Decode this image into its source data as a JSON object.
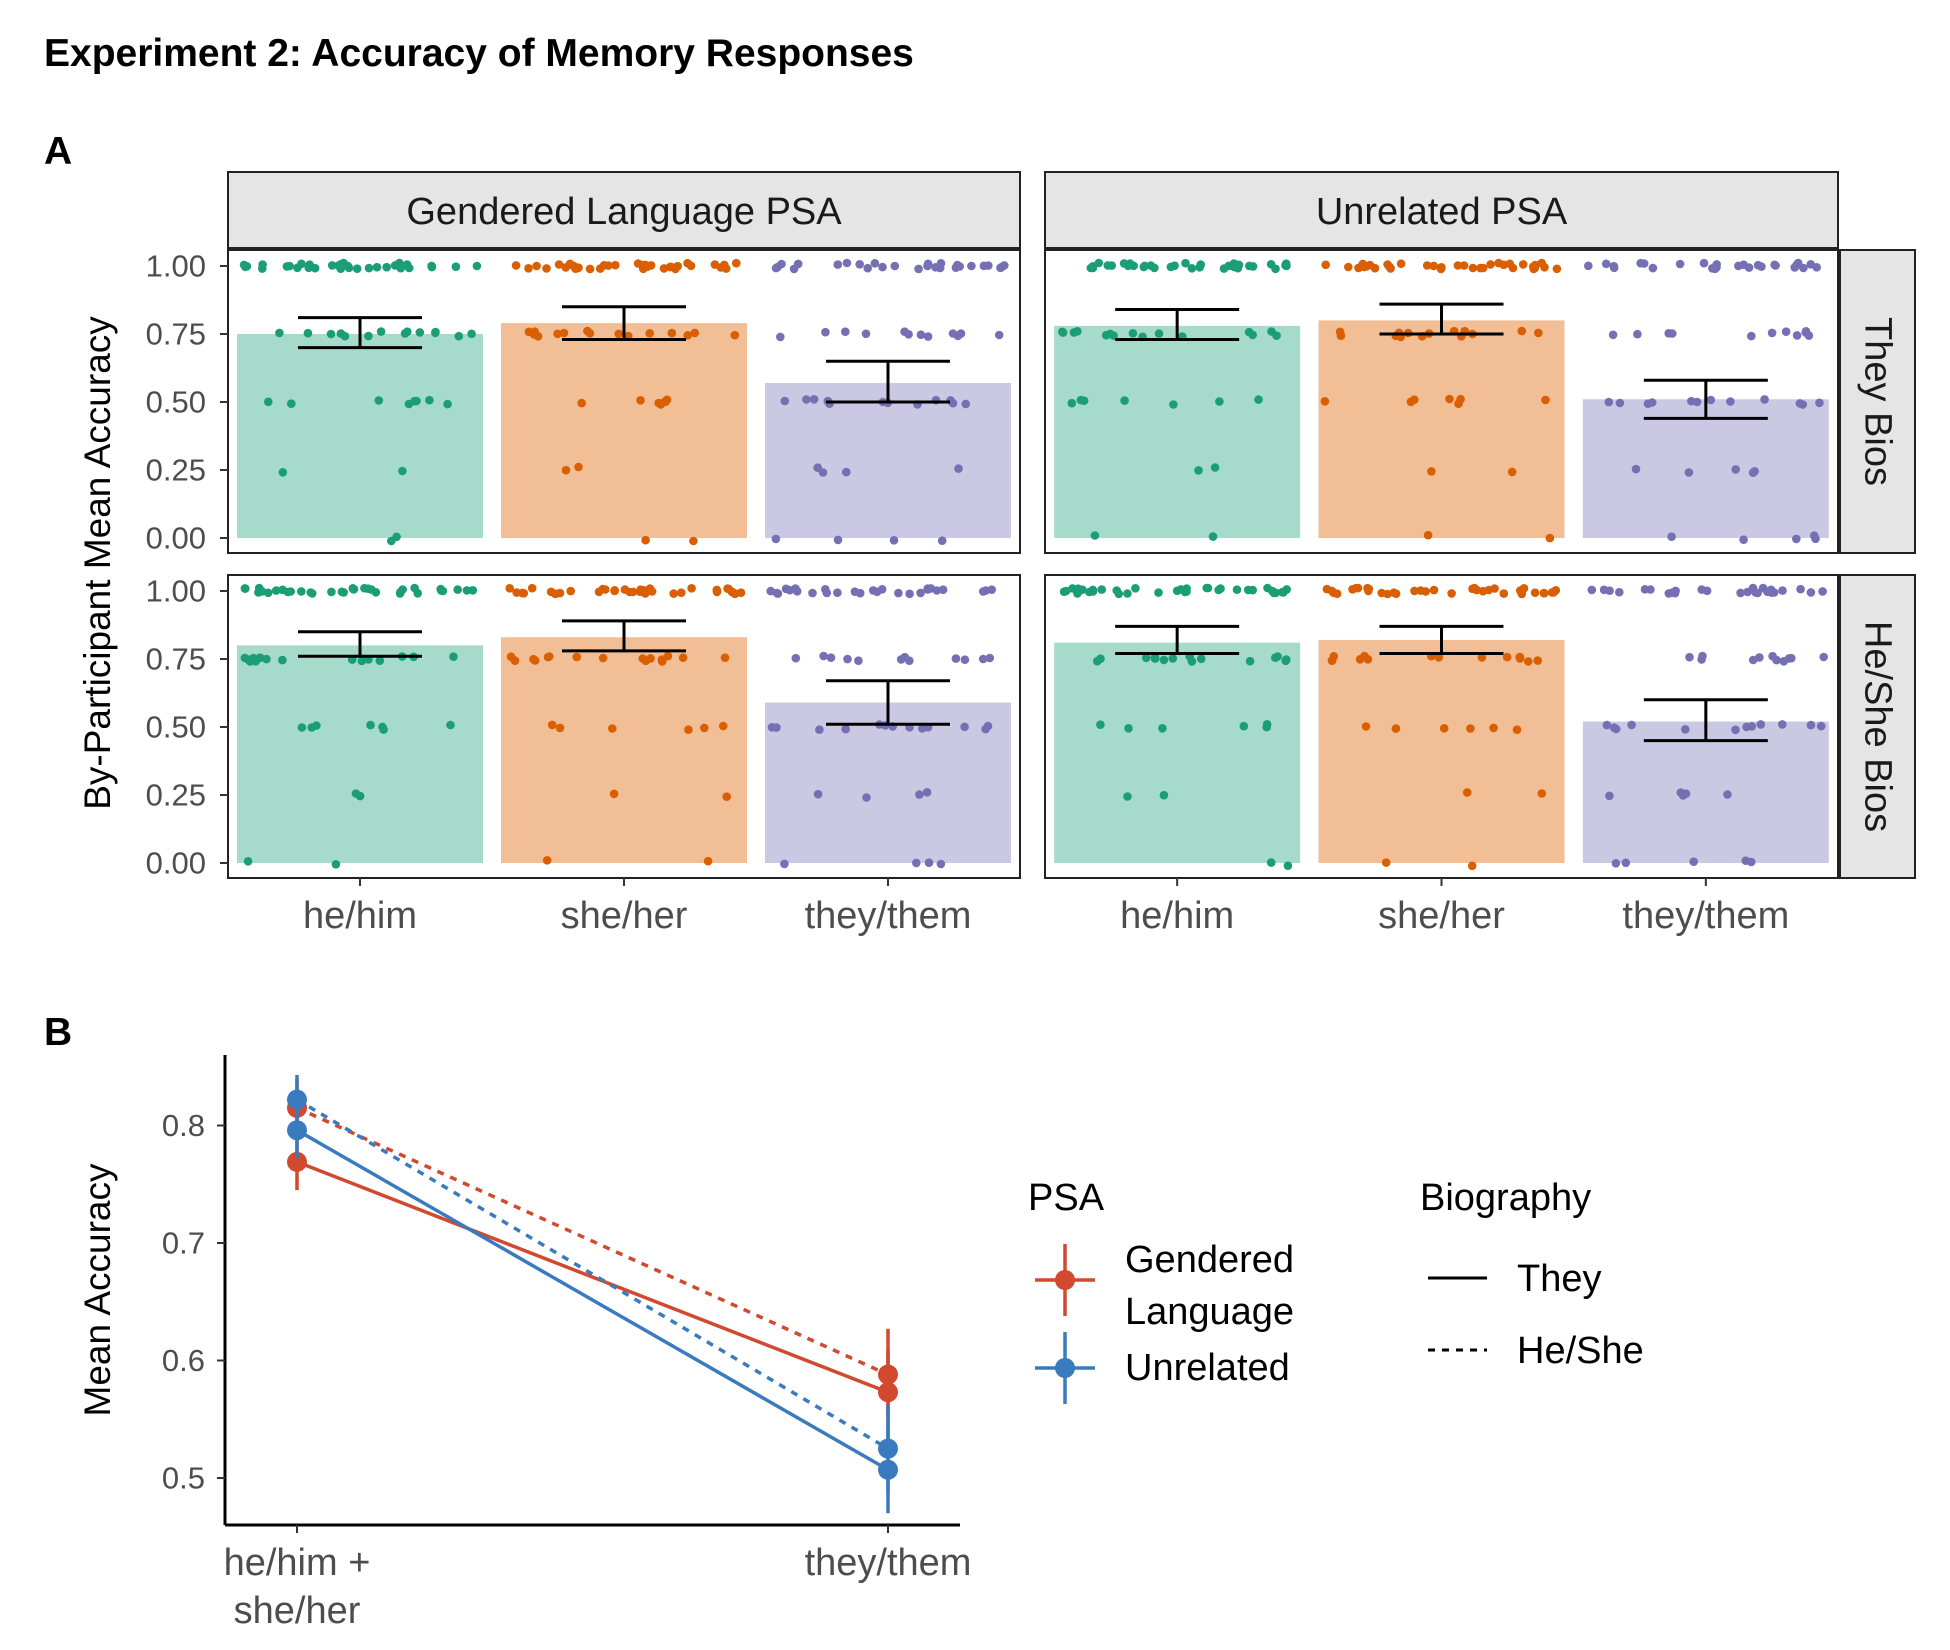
{
  "figure_title": "Experiment 2: Accuracy of Memory Responses",
  "colors": {
    "he_him": "#1b9e77",
    "she_her": "#d95f02",
    "they_them": "#7570b3",
    "he_him_bar": "#a6dbcb",
    "she_her_bar": "#f1be96",
    "they_them_bar": "#cac8e2",
    "gendered": "#d1492f",
    "unrelated": "#3a7bbf",
    "strip_fill": "#e5e5e5"
  },
  "chart_data": [
    {
      "panel": "A",
      "type": "bar",
      "ylabel": "By-Participant Mean Accuracy",
      "xlabel": "",
      "ylim": [
        0,
        1
      ],
      "yticks": [
        "0.00",
        "0.25",
        "0.50",
        "0.75",
        "1.00"
      ],
      "categories": [
        "he/him",
        "she/her",
        "they/them"
      ],
      "columns": [
        "Gendered Language PSA",
        "Unrelated PSA"
      ],
      "rows": [
        "They Bios",
        "He/She Bios"
      ],
      "facets": [
        {
          "column": "Gendered Language PSA",
          "row": "They Bios",
          "values": [
            0.75,
            0.79,
            0.57
          ],
          "error_low": [
            0.7,
            0.73,
            0.5
          ],
          "error_high": [
            0.81,
            0.85,
            0.65
          ]
        },
        {
          "column": "Unrelated PSA",
          "row": "They Bios",
          "values": [
            0.78,
            0.8,
            0.51
          ],
          "error_low": [
            0.73,
            0.75,
            0.44
          ],
          "error_high": [
            0.84,
            0.86,
            0.58
          ]
        },
        {
          "column": "Gendered Language PSA",
          "row": "He/She Bios",
          "values": [
            0.8,
            0.83,
            0.59
          ],
          "error_low": [
            0.76,
            0.78,
            0.51
          ],
          "error_high": [
            0.85,
            0.89,
            0.67
          ]
        },
        {
          "column": "Unrelated PSA",
          "row": "He/She Bios",
          "values": [
            0.81,
            0.82,
            0.52
          ],
          "error_low": [
            0.77,
            0.77,
            0.45
          ],
          "error_high": [
            0.87,
            0.87,
            0.6
          ]
        }
      ],
      "participant_points": "jittered individual participant accuracies at 0, 0.25, 0.5, 0.75, 1"
    },
    {
      "panel": "B",
      "type": "line",
      "ylabel": "Mean Accuracy",
      "xlabel": "",
      "x": [
        "he/him +\nshe/her",
        "they/them"
      ],
      "ylim": [
        0.46,
        0.86
      ],
      "yticks": [
        "0.5",
        "0.6",
        "0.7",
        "0.8"
      ],
      "series": [
        {
          "psa": "Gendered Language",
          "biography": "They",
          "values": [
            0.769,
            0.573
          ],
          "error": [
            [
              0.745,
              0.794
            ],
            [
              0.537,
              0.609
            ]
          ]
        },
        {
          "psa": "Gendered Language",
          "biography": "He/She",
          "values": [
            0.815,
            0.588
          ],
          "error": [
            [
              0.792,
              0.839
            ],
            [
              0.55,
              0.627
            ]
          ]
        },
        {
          "psa": "Unrelated",
          "biography": "They",
          "values": [
            0.796,
            0.507
          ],
          "error": [
            [
              0.772,
              0.819
            ],
            [
              0.47,
              0.543
            ]
          ]
        },
        {
          "psa": "Unrelated",
          "biography": "He/She",
          "values": [
            0.822,
            0.525
          ],
          "error": [
            [
              0.8,
              0.843
            ],
            [
              0.487,
              0.562
            ]
          ]
        }
      ],
      "legend": {
        "psa_title": "PSA",
        "psa_items": [
          "Gendered\nLanguage",
          "Unrelated"
        ],
        "bio_title": "Biography",
        "bio_items": [
          "They",
          "He/She"
        ],
        "position": "right"
      }
    }
  ]
}
